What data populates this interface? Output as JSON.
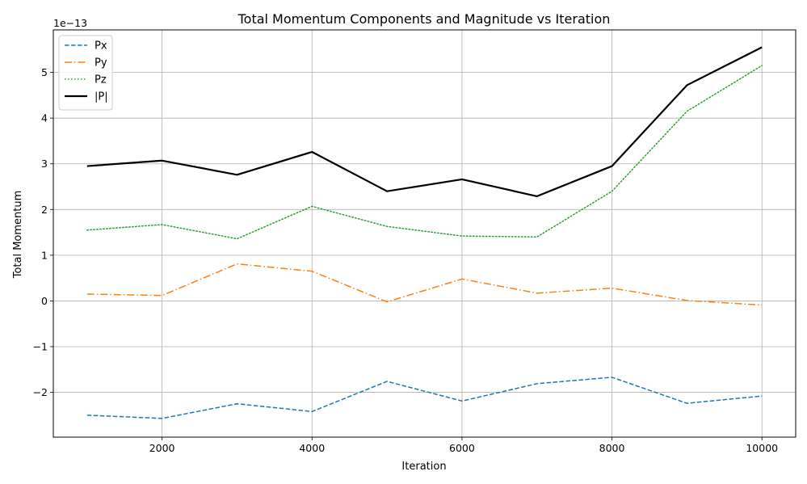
{
  "chart_data": {
    "type": "line",
    "title": "Total Momentum Components and Magnitude vs Iteration",
    "xlabel": "Iteration",
    "ylabel": "Total Momentum",
    "y_offset_text": "1e−13",
    "x": [
      1000,
      2000,
      3000,
      4000,
      5000,
      6000,
      7000,
      8000,
      9000,
      10000
    ],
    "xlim": [
      550,
      10450
    ],
    "ylim": [
      -2.98,
      5.93
    ],
    "xticks": [
      2000,
      4000,
      6000,
      8000,
      10000
    ],
    "yticks": [
      -2,
      -1,
      0,
      1,
      2,
      3,
      4,
      5
    ],
    "ytick_labels": [
      "−2",
      "−1",
      "0",
      "1",
      "2",
      "3",
      "4",
      "5"
    ],
    "grid": true,
    "legend_position": "top-left",
    "series": [
      {
        "name": "Px",
        "color": "#1f77b4",
        "style": "dashed",
        "width": 1.5,
        "values": [
          -2.5,
          -2.57,
          -2.25,
          -2.42,
          -1.76,
          -2.19,
          -1.81,
          -1.67,
          -2.24,
          -2.08
        ]
      },
      {
        "name": "Py",
        "color": "#ff7f0e",
        "style": "dashdot",
        "width": 1.5,
        "values": [
          0.15,
          0.12,
          0.81,
          0.65,
          -0.02,
          0.48,
          0.17,
          0.28,
          0.01,
          -0.09
        ]
      },
      {
        "name": "Pz",
        "color": "#2ca02c",
        "style": "dotted",
        "width": 1.5,
        "values": [
          1.55,
          1.67,
          1.36,
          2.07,
          1.63,
          1.42,
          1.4,
          2.4,
          4.15,
          5.15
        ]
      },
      {
        "name": "|P|",
        "color": "#000000",
        "style": "solid",
        "width": 2.2,
        "values": [
          2.95,
          3.07,
          2.76,
          3.26,
          2.4,
          2.66,
          2.29,
          2.95,
          4.72,
          5.55
        ]
      }
    ]
  }
}
